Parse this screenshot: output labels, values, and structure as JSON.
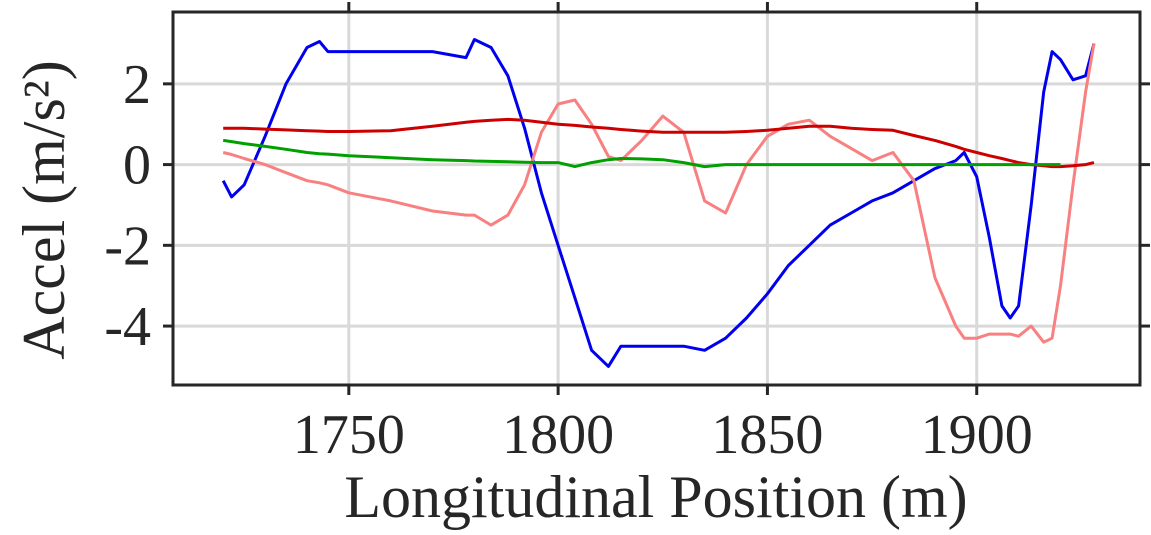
{
  "chart_data": {
    "type": "line",
    "xlabel": "Longitudinal Position (m)",
    "ylabel": "Accel (m/s²)",
    "x": [
      1720,
      1722,
      1725,
      1730,
      1735,
      1740,
      1743,
      1745,
      1750,
      1760,
      1770,
      1778,
      1780,
      1784,
      1788,
      1792,
      1796,
      1800,
      1804,
      1808,
      1812,
      1815,
      1820,
      1825,
      1830,
      1835,
      1840,
      1845,
      1850,
      1855,
      1860,
      1865,
      1870,
      1875,
      1880,
      1885,
      1890,
      1895,
      1897,
      1900,
      1903,
      1906,
      1908,
      1910,
      1913,
      1916,
      1918,
      1920,
      1923,
      1926,
      1928
    ],
    "series": [
      {
        "color": "#0000ee",
        "values": [
          -0.4,
          -0.8,
          -0.5,
          0.7,
          2.0,
          2.9,
          3.05,
          2.8,
          2.8,
          2.8,
          2.8,
          2.65,
          3.1,
          2.9,
          2.2,
          0.9,
          -0.7,
          -2.0,
          -3.3,
          -4.6,
          -5.0,
          -4.5,
          -4.5,
          -4.5,
          -4.5,
          -4.6,
          -4.3,
          -3.8,
          -3.2,
          -2.5,
          -2.0,
          -1.5,
          -1.2,
          -0.9,
          -0.7,
          -0.4,
          -0.1,
          0.1,
          0.3,
          -0.3,
          -1.8,
          -3.5,
          -3.8,
          -3.5,
          -1.0,
          1.8,
          2.8,
          2.6,
          2.1,
          2.2,
          3.0
        ]
      },
      {
        "color": "#f88080",
        "values": [
          0.3,
          0.25,
          0.15,
          0.0,
          -0.2,
          -0.4,
          -0.45,
          -0.5,
          -0.7,
          -0.9,
          -1.15,
          -1.25,
          -1.25,
          -1.5,
          -1.25,
          -0.5,
          0.8,
          1.5,
          1.6,
          1.0,
          0.2,
          0.1,
          0.6,
          1.2,
          0.8,
          -0.9,
          -1.2,
          0.0,
          0.7,
          1.0,
          1.1,
          0.7,
          0.4,
          0.1,
          0.3,
          -0.4,
          -2.8,
          -4.0,
          -4.3,
          -4.3,
          -4.2,
          -4.2,
          -4.2,
          -4.25,
          -4.0,
          -4.4,
          -4.3,
          -3.0,
          -0.5,
          1.8,
          3.0
        ]
      },
      {
        "color": "#cc0000",
        "values": [
          0.9,
          0.9,
          0.9,
          0.88,
          0.86,
          0.84,
          0.83,
          0.82,
          0.82,
          0.84,
          0.95,
          1.05,
          1.07,
          1.1,
          1.12,
          1.1,
          1.05,
          1.0,
          0.97,
          0.93,
          0.9,
          0.87,
          0.83,
          0.8,
          0.8,
          0.8,
          0.8,
          0.82,
          0.85,
          0.9,
          0.95,
          0.95,
          0.9,
          0.87,
          0.85,
          0.72,
          0.6,
          0.45,
          0.38,
          0.3,
          0.22,
          0.15,
          0.1,
          0.05,
          0.0,
          -0.03,
          -0.05,
          -0.05,
          -0.03,
          0.0,
          0.05
        ]
      },
      {
        "color": "#00a000",
        "values": [
          0.6,
          0.57,
          0.52,
          0.45,
          0.38,
          0.3,
          0.27,
          0.26,
          0.22,
          0.17,
          0.12,
          0.1,
          0.09,
          0.08,
          0.07,
          0.06,
          0.05,
          0.05,
          -0.05,
          0.05,
          0.12,
          0.15,
          0.14,
          0.12,
          0.05,
          -0.05,
          0,
          0,
          0,
          0,
          0,
          0,
          0,
          0,
          0,
          0,
          0,
          0,
          0,
          0,
          0,
          0,
          0,
          0,
          0,
          0,
          0,
          0,
          null,
          null,
          null
        ]
      }
    ],
    "xlim": [
      1708,
      1939
    ],
    "ylim": [
      -5.46,
      3.78
    ],
    "xticks": [
      1750,
      1800,
      1850,
      1900
    ],
    "yticks": [
      -4,
      -2,
      0,
      2
    ],
    "grid": true
  }
}
